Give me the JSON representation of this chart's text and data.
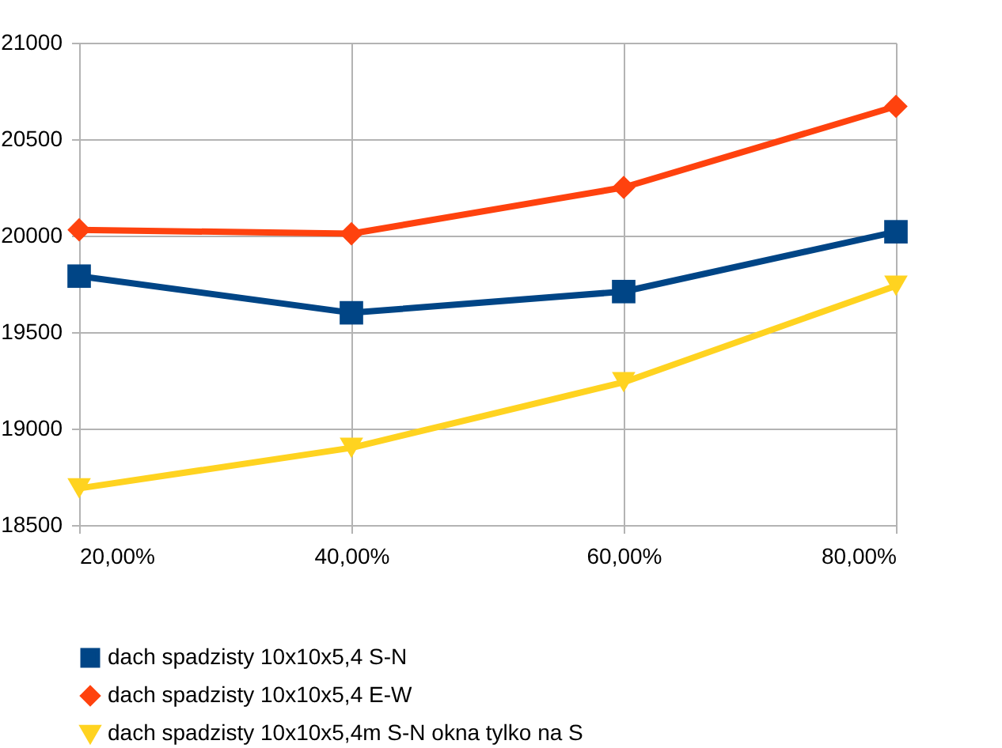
{
  "chart_data": {
    "type": "line",
    "x": [
      0.2,
      0.4,
      0.6,
      0.8
    ],
    "xlim": [
      0.2,
      0.8
    ],
    "xticks": [
      {
        "value": 0.2,
        "label": "20,00%"
      },
      {
        "value": 0.4,
        "label": "40,00%"
      },
      {
        "value": 0.6,
        "label": "60,00%"
      },
      {
        "value": 0.8,
        "label": "80,00%"
      }
    ],
    "ylim": [
      18500,
      21000
    ],
    "yticks": [
      18500,
      19000,
      19500,
      20000,
      20500,
      21000
    ],
    "grid": true,
    "legend": "bottom",
    "series": [
      {
        "name": "dach spadzisty 10x10x5,4 S-N",
        "color": "#004586",
        "marker": "square",
        "values": [
          19790,
          19600,
          19710,
          20020
        ]
      },
      {
        "name": "dach spadzisty 10x10x5,4 E-W",
        "color": "#ff420e",
        "marker": "diamond",
        "values": [
          20030,
          20010,
          20250,
          20670
        ]
      },
      {
        "name": "dach spadzisty 10x10x5,4m  S-N okna tylko na S",
        "color": "#ffd320",
        "marker": "triangle",
        "values": [
          18690,
          18900,
          19240,
          19740
        ]
      }
    ]
  }
}
